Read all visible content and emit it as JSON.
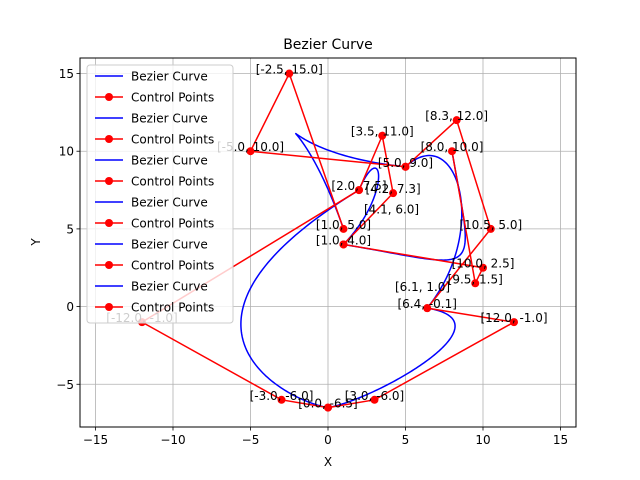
{
  "chart_data": {
    "type": "line",
    "title": "Bezier Curve",
    "xlabel": "X",
    "ylabel": "Y",
    "xlim": [
      -16,
      16
    ],
    "ylim": [
      -7.75,
      16
    ],
    "xticks": [
      -15,
      -10,
      -5,
      0,
      5,
      10,
      15
    ],
    "yticks": [
      -5,
      0,
      5,
      10,
      15
    ],
    "grid": true,
    "legend_position": "upper-left",
    "colors": {
      "curve": "#0000ff",
      "control": "#ff0000"
    },
    "legend": [
      {
        "label": "Bezier Curve",
        "kind": "curve"
      },
      {
        "label": "Control Points",
        "kind": "control"
      },
      {
        "label": "Bezier Curve",
        "kind": "curve"
      },
      {
        "label": "Control Points",
        "kind": "control"
      },
      {
        "label": "Bezier Curve",
        "kind": "curve"
      },
      {
        "label": "Control Points",
        "kind": "control"
      },
      {
        "label": "Bezier Curve",
        "kind": "curve"
      },
      {
        "label": "Control Points",
        "kind": "control"
      },
      {
        "label": "Bezier Curve",
        "kind": "curve"
      },
      {
        "label": "Control Points",
        "kind": "control"
      },
      {
        "label": "Bezier Curve",
        "kind": "curve"
      },
      {
        "label": "Control Points",
        "kind": "control"
      }
    ],
    "segments": [
      {
        "points": [
          [
            1.0,
            5.0
          ],
          [
            -2.5,
            15.0
          ],
          [
            -5.0,
            10.0
          ],
          [
            5.0,
            9.0
          ]
        ]
      },
      {
        "points": [
          [
            5.0,
            9.0
          ],
          [
            8.3,
            12.0
          ],
          [
            10.5,
            5.0
          ],
          [
            6.4,
            -0.1
          ]
        ]
      },
      {
        "points": [
          [
            6.4,
            -0.1
          ],
          [
            12.0,
            -1.0
          ],
          [
            3.0,
            -6.0
          ],
          [
            0.0,
            -6.5
          ]
        ]
      },
      {
        "points": [
          [
            0.0,
            -6.5
          ],
          [
            -3.0,
            -6.0
          ],
          [
            -12.0,
            -1.0
          ],
          [
            2.0,
            7.5
          ]
        ]
      },
      {
        "points": [
          [
            2.0,
            7.5
          ],
          [
            3.5,
            11.0
          ],
          [
            4.2,
            7.3
          ],
          [
            1.0,
            4.0
          ]
        ]
      },
      {
        "points": [
          [
            1.0,
            4.0
          ],
          [
            10.0,
            2.5
          ],
          [
            9.5,
            1.5
          ],
          [
            8.0,
            10.0
          ]
        ]
      }
    ],
    "point_labels": [
      {
        "text": "[-2.5, 15.0]",
        "x": -2.5,
        "y": 15.0
      },
      {
        "text": "[-5.0, 10.0]",
        "x": -5.0,
        "y": 10.0
      },
      {
        "text": "[3.5, 11.0]",
        "x": 3.5,
        "y": 11.0
      },
      {
        "text": "[8.3, 12.0]",
        "x": 8.3,
        "y": 12.0
      },
      {
        "text": "[8.0, 10.0]",
        "x": 8.0,
        "y": 10.0
      },
      {
        "text": "[5.0, 9.0]",
        "x": 5.0,
        "y": 9.0
      },
      {
        "text": "[2.0, 7.5]",
        "x": 2.0,
        "y": 7.5
      },
      {
        "text": "[4.2, 7.3]",
        "x": 4.2,
        "y": 7.3
      },
      {
        "text": "[4.1, 6.0]",
        "x": 4.1,
        "y": 6.0
      },
      {
        "text": "[10.5, 5.0]",
        "x": 10.5,
        "y": 5.0
      },
      {
        "text": "[1.0, 5.0]",
        "x": 1.0,
        "y": 5.0
      },
      {
        "text": "[1.0, 4.0]",
        "x": 1.0,
        "y": 4.0
      },
      {
        "text": "[10.0, 2.5]",
        "x": 10.0,
        "y": 2.5
      },
      {
        "text": "[9.5, 1.5]",
        "x": 9.5,
        "y": 1.5
      },
      {
        "text": "[6.1, 1.0]",
        "x": 6.1,
        "y": 1.0
      },
      {
        "text": "[6.4, -0.1]",
        "x": 6.4,
        "y": -0.1
      },
      {
        "text": "[-12.0, -1.0]",
        "x": -12.0,
        "y": -1.0
      },
      {
        "text": "[12.0, -1.0]",
        "x": 12.0,
        "y": -1.0
      },
      {
        "text": "[-3.0, -6.0]",
        "x": -3.0,
        "y": -6.0
      },
      {
        "text": "[3.0, -6.0]",
        "x": 3.0,
        "y": -6.0
      },
      {
        "text": "[0.0, -6.5]",
        "x": 0.0,
        "y": -6.5
      }
    ]
  }
}
